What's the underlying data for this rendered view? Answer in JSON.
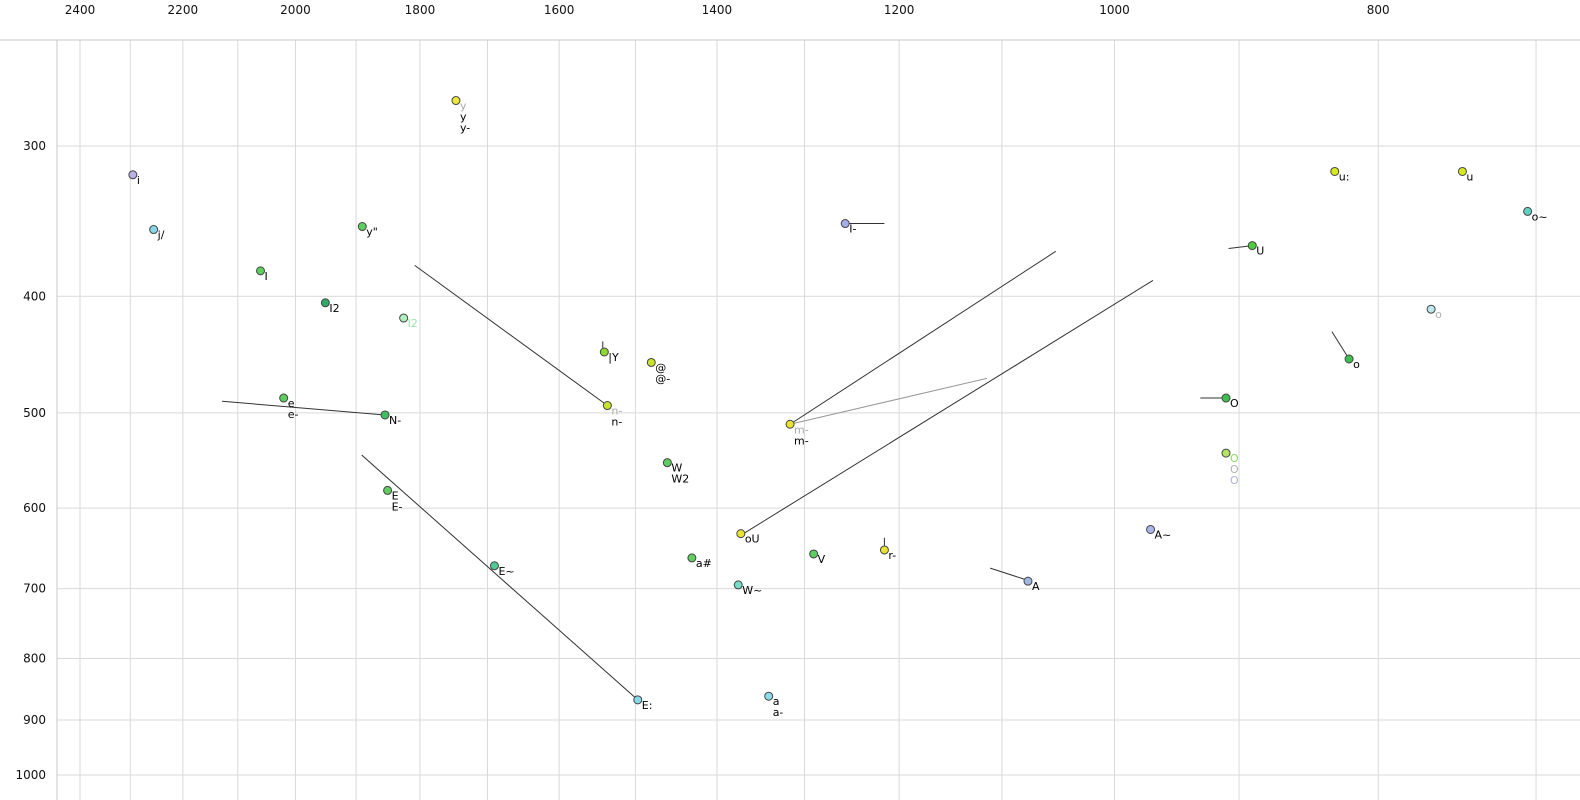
{
  "chart_data": {
    "type": "scatter",
    "description": "Vowel formant plot (F2 horizontal reversed log scale, F1 vertical log scale)",
    "grid_color": "#d9d9d9",
    "axis_line_color": "#c9c9c9",
    "x_axis": {
      "position": "top",
      "scale": "log",
      "reversed": true,
      "ticks": [
        2400,
        2200,
        2000,
        1800,
        1600,
        1400,
        1200,
        1000,
        800
      ],
      "grid_max": 2400,
      "grid_min": 700,
      "grid_step": 100,
      "range": [
        2550,
        675
      ]
    },
    "y_axis": {
      "position": "left",
      "scale": "log",
      "ticks": [
        300,
        400,
        500,
        600,
        700,
        800,
        900,
        1000
      ],
      "range": [
        245,
        1050
      ]
    },
    "points": [
      {
        "id": "y",
        "f2": 1746,
        "f1": 275,
        "fill": "#ece93c",
        "labels": [
          {
            "text": "y",
            "color": "#aaaaaa"
          },
          {
            "text": "y",
            "color": "#000000"
          },
          {
            "text": "y-",
            "color": "#000000"
          }
        ]
      },
      {
        "id": "i",
        "f2": 2295,
        "f1": 317,
        "fill": "#b9b1e6",
        "labels": [
          {
            "text": "i",
            "color": "#000000"
          }
        ]
      },
      {
        "id": "j",
        "f2": 2255,
        "f1": 352,
        "fill": "#86d7e9",
        "labels": [
          {
            "text": "j/",
            "color": "#000000"
          }
        ]
      },
      {
        "id": "y2",
        "f2": 1890,
        "f1": 350,
        "fill": "#5ecf5e",
        "labels": [
          {
            "text": "y\"",
            "color": "#000000"
          }
        ]
      },
      {
        "id": "I",
        "f2": 2060,
        "f1": 381,
        "fill": "#5ecf5e",
        "labels": [
          {
            "text": "I",
            "color": "#000000"
          }
        ]
      },
      {
        "id": "I2",
        "f2": 1950,
        "f1": 405,
        "fill": "#2fa968",
        "labels": [
          {
            "text": "I2",
            "color": "#000000"
          }
        ]
      },
      {
        "id": "I2b",
        "f2": 1825,
        "f1": 417,
        "fill": "#aef0c0",
        "labels": [
          {
            "text": "I2",
            "color": "#9be6a8"
          }
        ]
      },
      {
        "id": "lY",
        "f2": 1540,
        "f1": 445,
        "fill": "#8ed92e",
        "labels": [
          {
            "text": "|Y",
            "color": "#000000"
          }
        ]
      },
      {
        "id": "at",
        "f2": 1480,
        "f1": 454,
        "fill": "#c9e32b",
        "labels": [
          {
            "text": "@",
            "color": "#000000"
          },
          {
            "text": "@-",
            "color": "#000000"
          }
        ]
      },
      {
        "id": "n",
        "f2": 1536,
        "f1": 493,
        "fill": "#c9e32b",
        "labels": [
          {
            "text": "n-",
            "color": "#aaaaaa"
          },
          {
            "text": "n-",
            "color": "#000000"
          }
        ]
      },
      {
        "id": "e",
        "f2": 2020,
        "f1": 486,
        "fill": "#5ecf5e",
        "labels": [
          {
            "text": "e",
            "color": "#000000"
          },
          {
            "text": "e-",
            "color": "#000000"
          }
        ]
      },
      {
        "id": "N",
        "f2": 1854,
        "f1": 502,
        "fill": "#3fbf5f",
        "labels": [
          {
            "text": "N-",
            "color": "#000000"
          }
        ]
      },
      {
        "id": "E",
        "f2": 1850,
        "f1": 580,
        "fill": "#5ecf5e",
        "labels": [
          {
            "text": "E",
            "color": "#000000"
          },
          {
            "text": "E-",
            "color": "#000000"
          }
        ]
      },
      {
        "id": "En",
        "f2": 1690,
        "f1": 670,
        "fill": "#52c996",
        "labels": [
          {
            "text": "E~",
            "color": "#000000"
          }
        ]
      },
      {
        "id": "Ee",
        "f2": 1497,
        "f1": 866,
        "fill": "#86d7e9",
        "labels": [
          {
            "text": "E:",
            "color": "#000000"
          }
        ]
      },
      {
        "id": "a",
        "f2": 1340,
        "f1": 860,
        "fill": "#8edce9",
        "labels": [
          {
            "text": "a",
            "color": "#000000"
          },
          {
            "text": "a-",
            "color": "#000000"
          }
        ]
      },
      {
        "id": "W",
        "f2": 1460,
        "f1": 550,
        "fill": "#5ecf5e",
        "labels": [
          {
            "text": "W",
            "color": "#000000"
          },
          {
            "text": "W2",
            "color": "#000000"
          }
        ]
      },
      {
        "id": "ah",
        "f2": 1430,
        "f1": 660,
        "fill": "#5ecf5e",
        "labels": [
          {
            "text": "a#",
            "color": "#000000"
          }
        ]
      },
      {
        "id": "Wn",
        "f2": 1375,
        "f1": 695,
        "fill": "#79dcc8",
        "labels": [
          {
            "text": "W~",
            "color": "#000000"
          }
        ]
      },
      {
        "id": "oU",
        "f2": 1372,
        "f1": 630,
        "fill": "#e8e332",
        "labels": [
          {
            "text": "oU",
            "color": "#000000"
          }
        ]
      },
      {
        "id": "m",
        "f2": 1316,
        "f1": 511,
        "fill": "#e8e332",
        "labels": [
          {
            "text": "m-",
            "color": "#aaaaaa"
          },
          {
            "text": "m-",
            "color": "#000000"
          }
        ]
      },
      {
        "id": "Ib",
        "f2": 1256,
        "f1": 348,
        "fill": "#a3aee8",
        "labels": [
          {
            "text": "I-",
            "color": "#000000"
          }
        ]
      },
      {
        "id": "V",
        "f2": 1290,
        "f1": 655,
        "fill": "#5ecf5e",
        "labels": [
          {
            "text": "V",
            "color": "#000000"
          }
        ]
      },
      {
        "id": "r",
        "f2": 1215,
        "f1": 650,
        "fill": "#e8e332",
        "labels": [
          {
            "text": "r-",
            "color": "#000000"
          }
        ]
      },
      {
        "id": "A",
        "f2": 1076,
        "f1": 690,
        "fill": "#9fb6e0",
        "labels": [
          {
            "text": "A",
            "color": "#000000"
          }
        ]
      },
      {
        "id": "An",
        "f2": 970,
        "f1": 625,
        "fill": "#aab6ea",
        "labels": [
          {
            "text": "A~",
            "color": "#000000"
          }
        ]
      },
      {
        "id": "U",
        "f2": 890,
        "f1": 363,
        "fill": "#4ecc3f",
        "labels": [
          {
            "text": "U",
            "color": "#000000"
          }
        ]
      },
      {
        "id": "O",
        "f2": 910,
        "f1": 486,
        "fill": "#3fbf4f",
        "labels": [
          {
            "text": "O",
            "color": "#000000"
          }
        ]
      },
      {
        "id": "O2",
        "f2": 910,
        "f1": 540,
        "fill": "#b5e464",
        "labels": [
          {
            "text": "O",
            "color": "#8bd86a"
          },
          {
            "text": "O",
            "color": "#b3b3b3"
          },
          {
            "text": "O",
            "color": "#b0b0d8"
          }
        ]
      },
      {
        "id": "uu",
        "f2": 830,
        "f1": 315,
        "fill": "#d7e920",
        "labels": [
          {
            "text": "u:",
            "color": "#000000"
          }
        ]
      },
      {
        "id": "u",
        "f2": 745,
        "f1": 315,
        "fill": "#d7e920",
        "labels": [
          {
            "text": "u",
            "color": "#000000"
          }
        ]
      },
      {
        "id": "on",
        "f2": 705,
        "f1": 340,
        "fill": "#63cfc3",
        "labels": [
          {
            "text": "o~",
            "color": "#000000"
          }
        ]
      },
      {
        "id": "og",
        "f2": 765,
        "f1": 410,
        "fill": "#bfe9f2",
        "labels": [
          {
            "text": "o",
            "color": "#b0b0b0"
          }
        ]
      },
      {
        "id": "o",
        "f2": 820,
        "f1": 451,
        "fill": "#3fbf4f",
        "labels": [
          {
            "text": "o",
            "color": "#000000"
          }
        ]
      }
    ],
    "lines": [
      {
        "from": [
          1808,
          377
        ],
        "to": [
          1536,
          493
        ],
        "color": "#333333",
        "width": 1
      },
      {
        "from": [
          2128,
          489
        ],
        "to": [
          1854,
          502
        ],
        "color": "#333333",
        "width": 1
      },
      {
        "from": [
          1891,
          542
        ],
        "to": [
          1497,
          866
        ],
        "color": "#333333",
        "width": 1
      },
      {
        "from": [
          1316,
          511
        ],
        "to": [
          1051,
          367
        ],
        "color": "#333333",
        "width": 1
      },
      {
        "from": [
          1372,
          632
        ],
        "to": [
          968,
          388
        ],
        "color": "#333333",
        "width": 1
      },
      {
        "from": [
          1316,
          511
        ],
        "to": [
          1114,
          468
        ],
        "color": "#999999",
        "width": 1
      },
      {
        "from": [
          1256,
          348
        ],
        "to": [
          1215,
          348
        ],
        "color": "#333333",
        "width": 1
      },
      {
        "from": [
          908,
          365
        ],
        "to": [
          890,
          363
        ],
        "color": "#333333",
        "width": 1
      },
      {
        "from": [
          930,
          486
        ],
        "to": [
          911,
          486
        ],
        "color": "#333333",
        "width": 1
      },
      {
        "from": [
          1111,
          673
        ],
        "to": [
          1076,
          689
        ],
        "color": "#333333",
        "width": 1
      },
      {
        "from": [
          832,
          428
        ],
        "to": [
          820,
          451
        ],
        "color": "#333333",
        "width": 1
      },
      {
        "from": [
          1215,
          635
        ],
        "to": [
          1215,
          649
        ],
        "color": "#333333",
        "width": 1
      },
      {
        "from": [
          1542,
          436
        ],
        "to": [
          1542,
          445
        ],
        "color": "#333333",
        "width": 1
      }
    ]
  }
}
